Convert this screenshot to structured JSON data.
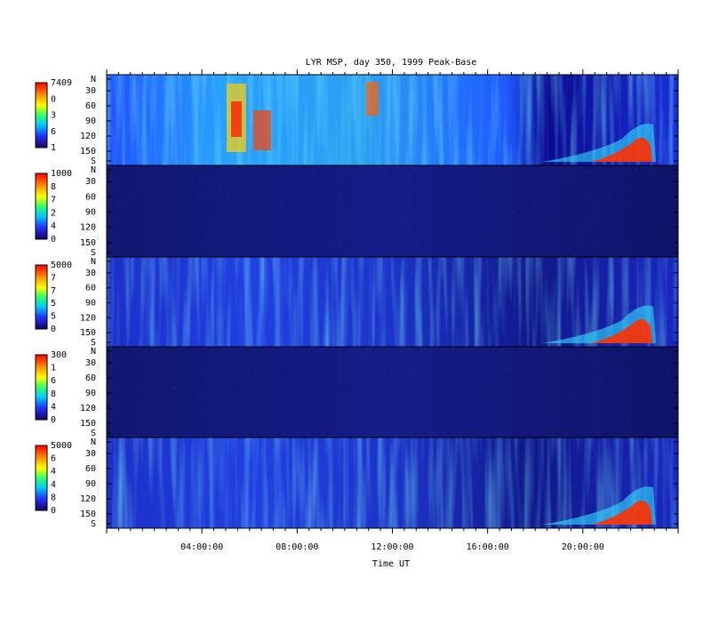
{
  "header": {
    "title": "LYR MSP, day 350, 1999 Peak-Base"
  },
  "y_labels": [
    "N",
    "30",
    "60",
    "90",
    "120",
    "150",
    "S"
  ],
  "panels": [
    {
      "colorbar_labels": [
        "7409",
        "0",
        "3",
        "6",
        "1"
      ]
    },
    {
      "colorbar_labels": [
        "1000",
        "8",
        "7",
        "2",
        "4",
        "0"
      ]
    },
    {
      "colorbar_labels": [
        "5000",
        "7",
        "7",
        "5",
        "5",
        "0"
      ]
    },
    {
      "colorbar_labels": [
        "300",
        "1",
        "6",
        "8",
        "4",
        "0"
      ]
    },
    {
      "colorbar_labels": [
        "5000",
        "6",
        "4",
        "4",
        "8",
        "0"
      ]
    }
  ],
  "x_axis": {
    "ticks": [
      "04:00:00",
      "08:00:00",
      "12:00:00",
      "16:00:00",
      "20:00:00"
    ],
    "label": "Time UT"
  }
}
